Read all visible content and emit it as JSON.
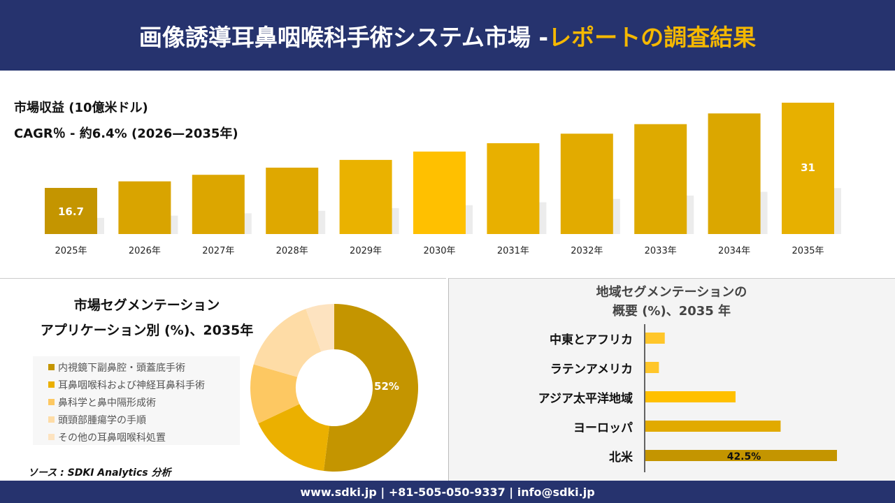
{
  "header": {
    "title_main": "画像誘導耳鼻咽喉科手術システム市場 - ",
    "title_highlight": "レポートの調査結果"
  },
  "chart_data": [
    {
      "type": "bar",
      "title": "市場収益 (10億米ドル)",
      "subtitle": "CAGR％ - 約6.4% (2026—2035年)",
      "categories": [
        "2025年",
        "2026年",
        "2027年",
        "2028年",
        "2029年",
        "2030年",
        "2031年",
        "2032年",
        "2033年",
        "2034年",
        "2035年"
      ],
      "values": [
        16.7,
        17.8,
        18.9,
        20.1,
        21.4,
        22.8,
        24.2,
        25.8,
        27.4,
        29.2,
        31
      ],
      "data_labels": {
        "0": "16.7",
        "10": "31"
      },
      "colors": [
        "#c49500",
        "#d9a400",
        "#dca600",
        "#dfa800",
        "#eab200",
        "#ffc000",
        "#e8b000",
        "#e2ab00",
        "#deaa00",
        "#dba700",
        "#e7b000"
      ]
    },
    {
      "type": "pie",
      "title_line1": "市場セグメンテーション",
      "title_line2": "アプリケーション別 (%)、2035年",
      "labels": [
        "内視鏡下副鼻腔・頭蓋底手術",
        "耳鼻咽喉科および神経耳鼻科手術",
        "鼻科学と鼻中隔形成術",
        "頭頸部腫瘍学の手順",
        "その他の耳鼻咽喉科処置"
      ],
      "values": [
        52,
        16,
        11.5,
        15,
        5.5
      ],
      "data_label": "52%",
      "colors": [
        "#c49500",
        "#ebb000",
        "#fdc862",
        "#fedca6",
        "#fde3c0"
      ]
    },
    {
      "type": "bar",
      "orientation": "horizontal",
      "title_line1": "地域セグメンテーションの",
      "title_line2": "概要 (%)、2035 年",
      "categories": [
        "中東とアフリカ",
        "ラテンアメリカ",
        "アジア太平洋地域",
        "ヨーロッパ",
        "北米"
      ],
      "values": [
        4.3,
        3.0,
        20,
        30,
        42.5
      ],
      "data_label": "42.5%",
      "colors": [
        "#ffc62a",
        "#ffc62a",
        "#ffc000",
        "#e1aa00",
        "#c49500"
      ]
    }
  ],
  "source": "ソース : SDKI Analytics 分析",
  "footer": "www.sdki.jp | +81-505-050-9337 | info@sdki.jp"
}
